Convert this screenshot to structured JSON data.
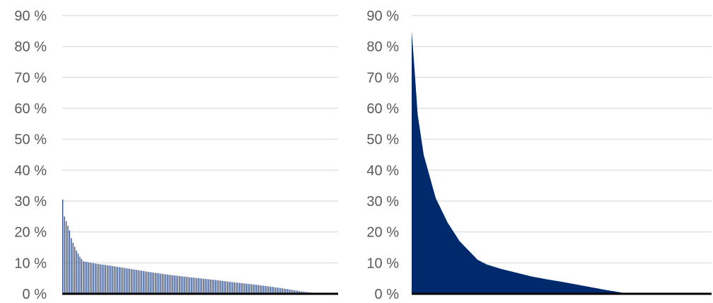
{
  "chart_data": [
    {
      "type": "bar",
      "title": "",
      "xlabel": "",
      "ylabel": "",
      "ylim": [
        0,
        90
      ],
      "y_ticks": [
        "0 %",
        "10 %",
        "20 %",
        "30 %",
        "40 %",
        "50 %",
        "60 %",
        "70 %",
        "80 %",
        "90 %"
      ],
      "grid": true,
      "x_tick_labels": false,
      "color": "#2e4a8a",
      "sorted": "descending",
      "count": 150,
      "value_profile": {
        "points": [
          [
            0,
            30.5
          ],
          [
            1,
            25
          ],
          [
            2,
            23.5
          ],
          [
            3,
            22
          ],
          [
            4,
            20.5
          ],
          [
            5,
            18
          ],
          [
            6,
            16.5
          ],
          [
            8,
            14
          ],
          [
            10,
            12
          ],
          [
            12,
            10.5
          ],
          [
            20,
            9.7
          ],
          [
            30,
            8.9
          ],
          [
            40,
            8
          ],
          [
            50,
            7.1
          ],
          [
            60,
            6.3
          ],
          [
            70,
            5.6
          ],
          [
            80,
            5
          ],
          [
            90,
            4.4
          ],
          [
            100,
            3.7
          ],
          [
            110,
            3.1
          ],
          [
            120,
            2.4
          ],
          [
            130,
            1.6
          ],
          [
            140,
            0.7
          ],
          [
            146,
            0.3
          ],
          [
            149,
            0.1
          ]
        ]
      }
    },
    {
      "type": "area",
      "title": "",
      "xlabel": "",
      "ylabel": "",
      "ylim": [
        0,
        90
      ],
      "y_ticks": [
        "0 %",
        "10 %",
        "20 %",
        "30 %",
        "40 %",
        "50 %",
        "60 %",
        "70 %",
        "80 %",
        "90 %"
      ],
      "grid": true,
      "x_tick_labels": false,
      "color": "#002a6b",
      "sorted": "descending",
      "value_profile": {
        "points": [
          [
            0,
            85
          ],
          [
            0.01,
            72
          ],
          [
            0.02,
            58
          ],
          [
            0.04,
            45
          ],
          [
            0.06,
            38
          ],
          [
            0.08,
            31
          ],
          [
            0.1,
            27
          ],
          [
            0.12,
            23
          ],
          [
            0.14,
            20
          ],
          [
            0.16,
            17
          ],
          [
            0.18,
            15
          ],
          [
            0.2,
            13
          ],
          [
            0.22,
            11
          ],
          [
            0.25,
            9.5
          ],
          [
            0.3,
            8
          ],
          [
            0.35,
            6.8
          ],
          [
            0.4,
            5.6
          ],
          [
            0.45,
            4.7
          ],
          [
            0.5,
            3.9
          ],
          [
            0.55,
            3
          ],
          [
            0.6,
            2.1
          ],
          [
            0.65,
            1.2
          ],
          [
            0.7,
            0.4
          ],
          [
            0.73,
            0
          ],
          [
            1.0,
            0
          ]
        ]
      }
    }
  ]
}
